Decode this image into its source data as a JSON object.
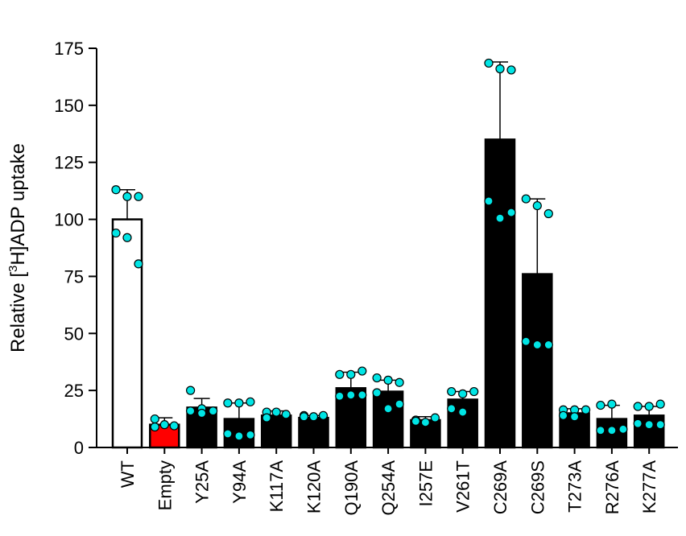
{
  "chart_data": {
    "type": "bar",
    "title": "",
    "xlabel": "",
    "ylabel_main": "Relative [",
    "ylabel_sup": "3",
    "ylabel_rest": "H]ADP uptake",
    "ylim": [
      0,
      175
    ],
    "yticks": [
      "0",
      "25",
      "50",
      "75",
      "100",
      "125",
      "150",
      "175"
    ],
    "yticks_values": [
      0,
      25,
      50,
      75,
      100,
      125,
      150,
      175
    ],
    "grid": false,
    "categories": [
      "WT",
      "Empty",
      "Y25A",
      "Y94A",
      "K117A",
      "K120A",
      "Q190A",
      "Q254A",
      "I257E",
      "V261T",
      "C269A",
      "C269S",
      "T273A",
      "R276A",
      "K277A"
    ],
    "values": [
      100,
      10,
      17.5,
      12.5,
      14,
      13,
      26,
      24.5,
      12,
      21,
      135,
      76,
      15,
      12.5,
      14
    ],
    "errors": [
      13,
      3,
      4,
      7,
      2,
      1,
      7,
      5,
      1.5,
      3.5,
      34,
      33,
      2,
      6,
      4
    ],
    "bar_colors": [
      "#ffffff",
      "#ff0000",
      "#000000",
      "#000000",
      "#000000",
      "#000000",
      "#000000",
      "#000000",
      "#000000",
      "#000000",
      "#000000",
      "#000000",
      "#000000",
      "#000000",
      "#000000"
    ],
    "point_color": "#00e5e5",
    "points": [
      [
        113,
        110,
        110,
        94,
        92,
        80.5
      ],
      [
        12.5,
        10,
        9.5,
        9
      ],
      [
        25,
        17,
        16,
        16,
        15
      ],
      [
        19.5,
        19.5,
        20,
        6,
        5,
        5.5
      ],
      [
        15.5,
        15.5,
        14.5,
        13
      ],
      [
        14,
        13.5,
        14,
        13.5
      ],
      [
        32,
        32,
        33.5,
        22.5,
        23,
        23
      ],
      [
        30.5,
        29.5,
        28.5,
        24,
        17,
        19
      ],
      [
        12,
        11,
        13,
        11.5
      ],
      [
        24.5,
        23.5,
        24.5,
        17,
        15.5
      ],
      [
        168.5,
        166,
        165.5,
        108,
        100.5,
        103
      ],
      [
        109,
        106,
        102.5,
        46.5,
        45,
        45
      ],
      [
        16.5,
        16.5,
        16.5,
        14,
        13.5
      ],
      [
        18.5,
        19,
        8,
        7.5,
        7.5
      ],
      [
        18,
        18,
        19,
        10.5,
        10,
        10
      ]
    ]
  }
}
